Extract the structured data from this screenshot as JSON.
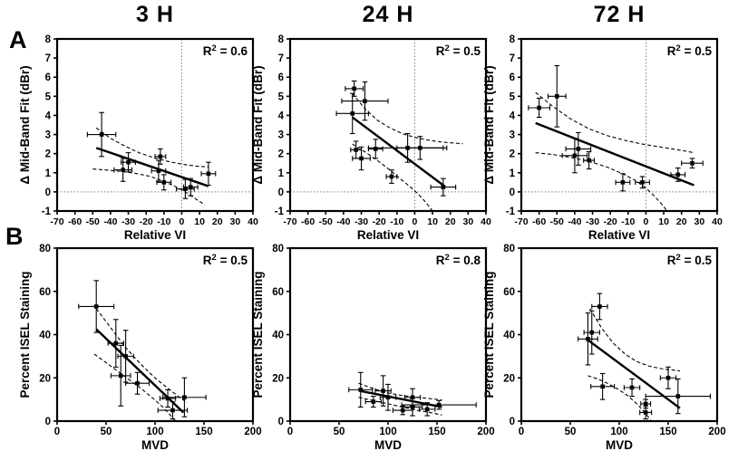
{
  "figure": {
    "row_labels": [
      "A",
      "B"
    ],
    "column_titles": [
      "3 H",
      "24 H",
      "72 H"
    ],
    "colors": {
      "ink": "#000000",
      "background": "#ffffff",
      "reference_line": "#7a7a7a"
    }
  },
  "chart_data": [
    {
      "id": "A-3H",
      "type": "scatter",
      "row": "A",
      "time": "3 H",
      "r2": "0.6",
      "xlabel": "Relative VI",
      "ylabel": "Δ Mid-Band Fit (dBr)",
      "xlim": [
        -70,
        40
      ],
      "ylim": [
        -1,
        8
      ],
      "xticks": [
        -70,
        -60,
        -50,
        -40,
        -30,
        -20,
        -10,
        0,
        10,
        20,
        30,
        40
      ],
      "yticks": [
        -1,
        0,
        1,
        2,
        3,
        4,
        5,
        6,
        7,
        8
      ],
      "zero_lines": true,
      "points": [
        {
          "x": -45,
          "y": 3.0,
          "xe": 8,
          "ye": 1.15
        },
        {
          "x": -30,
          "y": 1.55,
          "xe": 4,
          "ye": 0.5
        },
        {
          "x": -33,
          "y": 1.15,
          "xe": 5,
          "ye": 0.6
        },
        {
          "x": -12,
          "y": 1.85,
          "xe": 3,
          "ye": 0.4
        },
        {
          "x": -13,
          "y": 1.1,
          "xe": 4,
          "ye": 0.55
        },
        {
          "x": -10,
          "y": 0.5,
          "xe": 4,
          "ye": 0.4
        },
        {
          "x": 2,
          "y": 0.15,
          "xe": 5,
          "ye": 0.5
        },
        {
          "x": 5,
          "y": 0.25,
          "xe": 4,
          "ye": 0.45
        },
        {
          "x": 15,
          "y": 0.95,
          "xe": 4,
          "ye": 0.6
        }
      ],
      "fit": {
        "x1": -48,
        "y1": 2.3,
        "x2": 15,
        "y2": 0.3
      },
      "ci_upper": [
        [
          -48,
          3.35
        ],
        [
          -40,
          2.8
        ],
        [
          -32,
          2.4
        ],
        [
          -24,
          2.05
        ],
        [
          -16,
          1.8
        ],
        [
          -8,
          1.6
        ],
        [
          0,
          1.45
        ],
        [
          8,
          1.35
        ],
        [
          15,
          1.3
        ]
      ],
      "ci_lower": [
        [
          -50,
          1.2
        ],
        [
          -42,
          1.14
        ],
        [
          -34,
          1.07
        ],
        [
          -26,
          0.97
        ],
        [
          -18,
          0.82
        ],
        [
          -10,
          0.55
        ],
        [
          -4,
          0.3
        ],
        [
          0,
          0.1
        ],
        [
          4,
          -0.12
        ],
        [
          8,
          -0.38
        ],
        [
          13,
          -0.68
        ]
      ]
    },
    {
      "id": "A-24H",
      "type": "scatter",
      "row": "A",
      "time": "24 H",
      "r2": "0.5",
      "xlabel": "Relative VI",
      "ylabel": "Δ Mid-Band Fit (dBr)",
      "xlim": [
        -70,
        40
      ],
      "ylim": [
        -1,
        8
      ],
      "xticks": [
        -70,
        -60,
        -50,
        -40,
        -30,
        -20,
        -10,
        0,
        10,
        20,
        30,
        40
      ],
      "yticks": [
        -1,
        0,
        1,
        2,
        3,
        4,
        5,
        6,
        7,
        8
      ],
      "zero_lines": true,
      "points": [
        {
          "x": -34,
          "y": 5.4,
          "xe": 5,
          "ye": 0.4
        },
        {
          "x": -28,
          "y": 4.75,
          "xe": 13,
          "ye": 1.0
        },
        {
          "x": -35,
          "y": 4.1,
          "xe": 9,
          "ye": 1.05
        },
        {
          "x": -30,
          "y": 1.75,
          "xe": 5,
          "ye": 0.6
        },
        {
          "x": -33,
          "y": 2.2,
          "xe": 3,
          "ye": 0.45
        },
        {
          "x": -22,
          "y": 2.25,
          "xe": 4,
          "ye": 0.5
        },
        {
          "x": -4,
          "y": 2.3,
          "xe": 22,
          "ye": 0.75
        },
        {
          "x": 3,
          "y": 2.3,
          "xe": 13,
          "ye": 0.6
        },
        {
          "x": -13,
          "y": 0.8,
          "xe": 3,
          "ye": 0.35
        },
        {
          "x": 16,
          "y": 0.25,
          "xe": 7,
          "ye": 0.45
        }
      ],
      "fit": {
        "x1": -35,
        "y1": 3.9,
        "x2": 17,
        "y2": 0.28
      },
      "ci_upper": [
        [
          -35,
          5.15
        ],
        [
          -28,
          4.35
        ],
        [
          -21,
          3.75
        ],
        [
          -14,
          3.35
        ],
        [
          -7,
          3.05
        ],
        [
          0,
          2.85
        ],
        [
          7,
          2.72
        ],
        [
          14,
          2.62
        ],
        [
          21,
          2.56
        ],
        [
          27,
          2.52
        ]
      ],
      "ci_lower": [
        [
          -35,
          2.5
        ],
        [
          -28,
          2.1
        ],
        [
          -21,
          1.65
        ],
        [
          -14,
          1.15
        ],
        [
          -7,
          0.6
        ],
        [
          -2,
          0.22
        ],
        [
          2,
          -0.12
        ],
        [
          6,
          -0.52
        ],
        [
          10,
          -1.0
        ]
      ]
    },
    {
      "id": "A-72H",
      "type": "scatter",
      "row": "A",
      "time": "72 H",
      "r2": "0.5",
      "xlabel": "Relative VI",
      "ylabel": "Δ Mid-Band Fit (dBr)",
      "xlim": [
        -70,
        40
      ],
      "ylim": [
        -1,
        8
      ],
      "xticks": [
        -70,
        -60,
        -50,
        -40,
        -30,
        -20,
        -10,
        0,
        10,
        20,
        30,
        40
      ],
      "yticks": [
        -1,
        0,
        1,
        2,
        3,
        4,
        5,
        6,
        7,
        8
      ],
      "zero_lines": true,
      "points": [
        {
          "x": -60,
          "y": 4.4,
          "xe": 6,
          "ye": 0.5
        },
        {
          "x": -50,
          "y": 5.0,
          "xe": 5,
          "ye": 1.6
        },
        {
          "x": -38,
          "y": 2.25,
          "xe": 7,
          "ye": 0.85
        },
        {
          "x": -40,
          "y": 1.9,
          "xe": 7,
          "ye": 0.9
        },
        {
          "x": -32,
          "y": 1.65,
          "xe": 3,
          "ye": 0.45
        },
        {
          "x": -13,
          "y": 0.5,
          "xe": 4,
          "ye": 0.45
        },
        {
          "x": -2,
          "y": 0.5,
          "xe": 4,
          "ye": 0.3
        },
        {
          "x": 18,
          "y": 0.9,
          "xe": 4,
          "ye": 0.35
        },
        {
          "x": 26,
          "y": 1.5,
          "xe": 6,
          "ye": 0.25
        }
      ],
      "fit": {
        "x1": -62,
        "y1": 3.6,
        "x2": 27,
        "y2": 0.35
      },
      "ci_upper": [
        [
          -62,
          5.2
        ],
        [
          -52,
          4.45
        ],
        [
          -42,
          3.8
        ],
        [
          -32,
          3.3
        ],
        [
          -22,
          2.95
        ],
        [
          -12,
          2.7
        ],
        [
          -2,
          2.5
        ],
        [
          8,
          2.35
        ],
        [
          18,
          2.2
        ],
        [
          27,
          2.05
        ]
      ],
      "ci_lower": [
        [
          -62,
          2.05
        ],
        [
          -52,
          1.95
        ],
        [
          -42,
          1.8
        ],
        [
          -32,
          1.6
        ],
        [
          -22,
          1.3
        ],
        [
          -12,
          0.9
        ],
        [
          -6,
          0.6
        ],
        [
          0,
          0.2
        ],
        [
          4,
          -0.15
        ],
        [
          8,
          -0.55
        ],
        [
          12,
          -1.0
        ]
      ]
    },
    {
      "id": "B-3H",
      "type": "scatter",
      "row": "B",
      "time": "3 H",
      "r2": "0.5",
      "xlabel": "MVD",
      "ylabel": "Percent ISEL Staining",
      "xlim": [
        0,
        200
      ],
      "ylim": [
        0,
        80
      ],
      "xticks": [
        0,
        50,
        100,
        150,
        200
      ],
      "yticks": [
        0,
        20,
        40,
        60,
        80
      ],
      "zero_lines": false,
      "points": [
        {
          "x": 40,
          "y": 53,
          "xe": 18,
          "ye": 12
        },
        {
          "x": 60,
          "y": 36,
          "xe": 8,
          "ye": 11
        },
        {
          "x": 70,
          "y": 30,
          "xe": 8,
          "ye": 12
        },
        {
          "x": 65,
          "y": 21,
          "xe": 10,
          "ye": 14
        },
        {
          "x": 82,
          "y": 17.5,
          "xe": 12,
          "ye": 5
        },
        {
          "x": 113,
          "y": 10.5,
          "xe": 8,
          "ye": 4
        },
        {
          "x": 130,
          "y": 11,
          "xe": 22,
          "ye": 9
        },
        {
          "x": 118,
          "y": 5,
          "xe": 15,
          "ye": 4
        }
      ],
      "fit": {
        "x1": 40,
        "y1": 42.5,
        "x2": 129,
        "y2": 4
      },
      "ci_upper": [
        [
          40,
          52
        ],
        [
          55,
          43
        ],
        [
          70,
          34
        ],
        [
          85,
          26.5
        ],
        [
          100,
          20
        ],
        [
          115,
          14.5
        ],
        [
          125,
          11
        ],
        [
          133,
          8.5
        ]
      ],
      "ci_lower": [
        [
          38,
          31
        ],
        [
          50,
          27
        ],
        [
          62,
          23
        ],
        [
          74,
          19
        ],
        [
          86,
          15
        ],
        [
          98,
          10.5
        ],
        [
          108,
          6.5
        ],
        [
          116,
          2.5
        ],
        [
          120,
          0.5
        ]
      ]
    },
    {
      "id": "B-24H",
      "type": "scatter",
      "row": "B",
      "time": "24 H",
      "r2": "0.8",
      "xlabel": "MVD",
      "ylabel": "Percent ISEL Staining",
      "xlim": [
        0,
        200
      ],
      "ylim": [
        0,
        80
      ],
      "xticks": [
        0,
        50,
        100,
        150,
        200
      ],
      "yticks": [
        0,
        20,
        40,
        60,
        80
      ],
      "zero_lines": false,
      "points": [
        {
          "x": 72,
          "y": 14.5,
          "xe": 12,
          "ye": 8
        },
        {
          "x": 85,
          "y": 9,
          "xe": 8,
          "ye": 2.5
        },
        {
          "x": 95,
          "y": 14,
          "xe": 8,
          "ye": 7
        },
        {
          "x": 100,
          "y": 11,
          "xe": 8,
          "ye": 6
        },
        {
          "x": 125,
          "y": 11,
          "xe": 8,
          "ye": 4
        },
        {
          "x": 125,
          "y": 6.5,
          "xe": 10,
          "ye": 4
        },
        {
          "x": 115,
          "y": 5,
          "xe": 10,
          "ye": 2
        },
        {
          "x": 140,
          "y": 5.5,
          "xe": 8,
          "ye": 3
        },
        {
          "x": 152,
          "y": 7.5,
          "xe": 38,
          "ye": 2
        }
      ],
      "fit": {
        "x1": 71,
        "y1": 14,
        "x2": 155,
        "y2": 6.5
      },
      "ci_upper": [
        [
          70,
          17.5
        ],
        [
          85,
          15
        ],
        [
          100,
          13
        ],
        [
          115,
          11.8
        ],
        [
          130,
          11
        ],
        [
          145,
          10.3
        ],
        [
          155,
          9.8
        ]
      ],
      "ci_lower": [
        [
          70,
          11
        ],
        [
          85,
          9.5
        ],
        [
          100,
          8
        ],
        [
          115,
          6.5
        ],
        [
          130,
          5
        ],
        [
          145,
          3.8
        ],
        [
          155,
          2.8
        ]
      ]
    },
    {
      "id": "B-72H",
      "type": "scatter",
      "row": "B",
      "time": "72 H",
      "r2": "0.5",
      "xlabel": "MVD",
      "ylabel": "Percent ISEL Staining",
      "xlim": [
        0,
        200
      ],
      "ylim": [
        0,
        80
      ],
      "xticks": [
        0,
        50,
        100,
        150,
        200
      ],
      "yticks": [
        0,
        20,
        40,
        60,
        80
      ],
      "zero_lines": false,
      "points": [
        {
          "x": 80,
          "y": 53,
          "xe": 8,
          "ye": 6
        },
        {
          "x": 72,
          "y": 41,
          "xe": 8,
          "ye": 10
        },
        {
          "x": 68,
          "y": 38,
          "xe": 10,
          "ye": 12
        },
        {
          "x": 83,
          "y": 16,
          "xe": 12,
          "ye": 6
        },
        {
          "x": 113,
          "y": 15.5,
          "xe": 8,
          "ye": 4
        },
        {
          "x": 150,
          "y": 20,
          "xe": 8,
          "ye": 5
        },
        {
          "x": 127,
          "y": 8,
          "xe": 5,
          "ye": 2
        },
        {
          "x": 127,
          "y": 4,
          "xe": 6,
          "ye": 3
        },
        {
          "x": 160,
          "y": 11.5,
          "xe": 33,
          "ye": 8
        }
      ],
      "fit": {
        "x1": 68,
        "y1": 37.5,
        "x2": 162,
        "y2": 6
      },
      "ci_upper": [
        [
          70,
          52
        ],
        [
          82,
          43
        ],
        [
          94,
          36
        ],
        [
          106,
          31
        ],
        [
          118,
          27.5
        ],
        [
          130,
          25.5
        ],
        [
          142,
          24.3
        ],
        [
          155,
          23.6
        ],
        [
          162,
          23.2
        ]
      ],
      "ci_lower": [
        [
          68,
          21
        ],
        [
          78,
          19.5
        ],
        [
          88,
          17.5
        ],
        [
          98,
          15
        ],
        [
          108,
          12
        ],
        [
          118,
          8
        ],
        [
          126,
          4
        ],
        [
          132,
          0.5
        ]
      ]
    }
  ]
}
